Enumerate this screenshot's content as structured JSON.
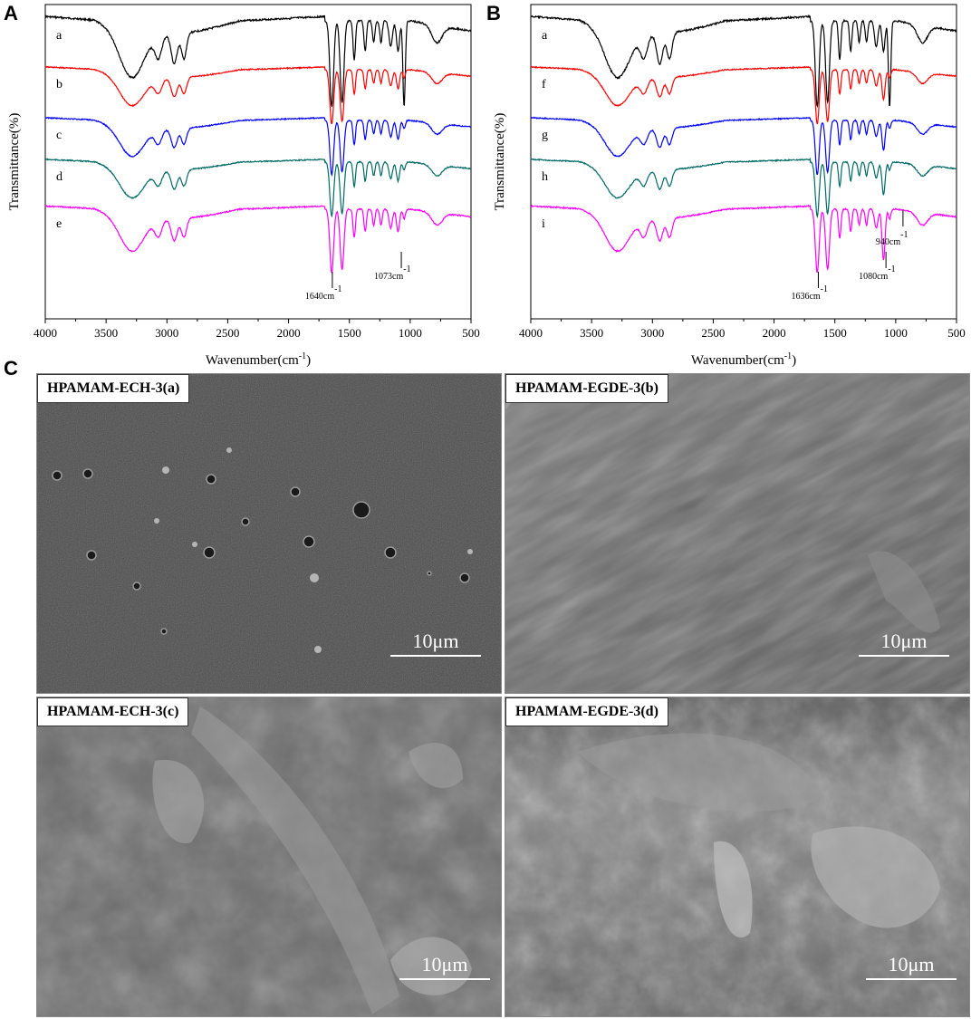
{
  "panels": {
    "A": "A",
    "B": "B",
    "C": "C"
  },
  "chart_data": [
    {
      "type": "line",
      "panel": "A",
      "xlabel": "Wavenumber(cm-1)",
      "ylabel": "Transmittance(%)",
      "xlim": [
        4000,
        500
      ],
      "xreverse": true,
      "xticks": [
        4000,
        3500,
        3000,
        2500,
        2000,
        1500,
        1000,
        500
      ],
      "grid": false,
      "series": [
        {
          "name": "a",
          "color": "#000000"
        },
        {
          "name": "b",
          "color": "#ff0000"
        },
        {
          "name": "c",
          "color": "#0000ff"
        },
        {
          "name": "d",
          "color": "#006b66"
        },
        {
          "name": "e",
          "color": "#ff00ff"
        }
      ],
      "annotations": [
        {
          "text": "1640cm",
          "sup": "-1",
          "x": 1640
        },
        {
          "text": "1073cm",
          "sup": "-1",
          "x": 1073
        }
      ]
    },
    {
      "type": "line",
      "panel": "B",
      "xlabel": "Wavenumber(cm-1)",
      "ylabel": "Transmittance(%)",
      "xlim": [
        4000,
        500
      ],
      "xreverse": true,
      "xticks": [
        4000,
        3500,
        3000,
        2500,
        2000,
        1500,
        1000,
        500
      ],
      "grid": false,
      "series": [
        {
          "name": "a",
          "color": "#000000"
        },
        {
          "name": "f",
          "color": "#ff0000"
        },
        {
          "name": "g",
          "color": "#0000ff"
        },
        {
          "name": "h",
          "color": "#006b66"
        },
        {
          "name": "i",
          "color": "#ff00ff"
        }
      ],
      "annotations": [
        {
          "text": "1636cm",
          "sup": "-1",
          "x": 1636
        },
        {
          "text": "1080cm",
          "sup": "-1",
          "x": 1080
        },
        {
          "text": "940cm",
          "sup": "-1",
          "x": 940
        }
      ]
    }
  ],
  "sem_images": [
    {
      "label": "HPAMAM-ECH-3(a)",
      "scale": "10μm"
    },
    {
      "label": "HPAMAM-EGDE-3(b)",
      "scale": "10μm"
    },
    {
      "label": "HPAMAM-ECH-3(c)",
      "scale": "10μm"
    },
    {
      "label": "HPAMAM-EGDE-3(d)",
      "scale": "10μm"
    }
  ]
}
